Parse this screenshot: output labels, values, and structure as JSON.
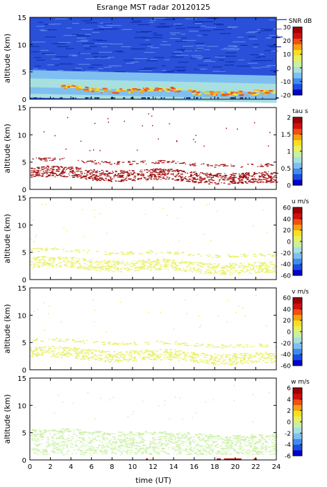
{
  "chart_data": [
    {
      "type": "heatmap",
      "title": "Esrange MST radar 20120125",
      "ylabel": "altitude (km)",
      "xlim": [
        0,
        24
      ],
      "ylim": [
        0,
        15
      ],
      "colorbar": {
        "label": "SNR dB",
        "ticks": [
          30,
          20,
          10,
          0,
          -10,
          -20
        ],
        "range": [
          -20,
          30
        ]
      }
    },
    {
      "type": "heatmap",
      "ylabel": "altitude (km)",
      "xlim": [
        0,
        24
      ],
      "ylim": [
        0,
        15
      ],
      "colorbar": {
        "label": "tau s",
        "ticks": [
          2,
          1.5,
          1,
          0.5,
          0
        ],
        "range": [
          0,
          2
        ]
      }
    },
    {
      "type": "heatmap",
      "ylabel": "altitude (km)",
      "xlim": [
        0,
        24
      ],
      "ylim": [
        0,
        15
      ],
      "colorbar": {
        "label": "u m/s",
        "ticks": [
          60,
          40,
          20,
          0,
          -20,
          -40,
          -60
        ],
        "range": [
          -60,
          60
        ]
      }
    },
    {
      "type": "heatmap",
      "ylabel": "altitude (km)",
      "xlim": [
        0,
        24
      ],
      "ylim": [
        0,
        15
      ],
      "colorbar": {
        "label": "v m/s",
        "ticks": [
          60,
          40,
          20,
          0,
          -20,
          -40,
          -60
        ],
        "range": [
          -60,
          60
        ]
      }
    },
    {
      "type": "heatmap",
      "ylabel": "altitude (km)",
      "xlabel": "time (UT)",
      "xlim": [
        0,
        24
      ],
      "ylim": [
        0,
        15
      ],
      "colorbar": {
        "label": "w m/s",
        "ticks": [
          6,
          4,
          2,
          0,
          -2,
          -4,
          -6
        ],
        "range": [
          -6,
          6
        ]
      }
    }
  ],
  "axes": {
    "x_ticks": [
      0,
      2,
      4,
      6,
      8,
      10,
      12,
      14,
      16,
      18,
      20,
      22,
      24
    ],
    "y_ticks": [
      0,
      5,
      10,
      15
    ]
  },
  "colors": {
    "colormap": [
      "#0000cc",
      "#1a4fe0",
      "#3f8cf0",
      "#7fbff0",
      "#a8e0e0",
      "#c8f0a0",
      "#e8f060",
      "#f8e020",
      "#f8a010",
      "#f05010",
      "#d01010",
      "#a00000"
    ]
  }
}
